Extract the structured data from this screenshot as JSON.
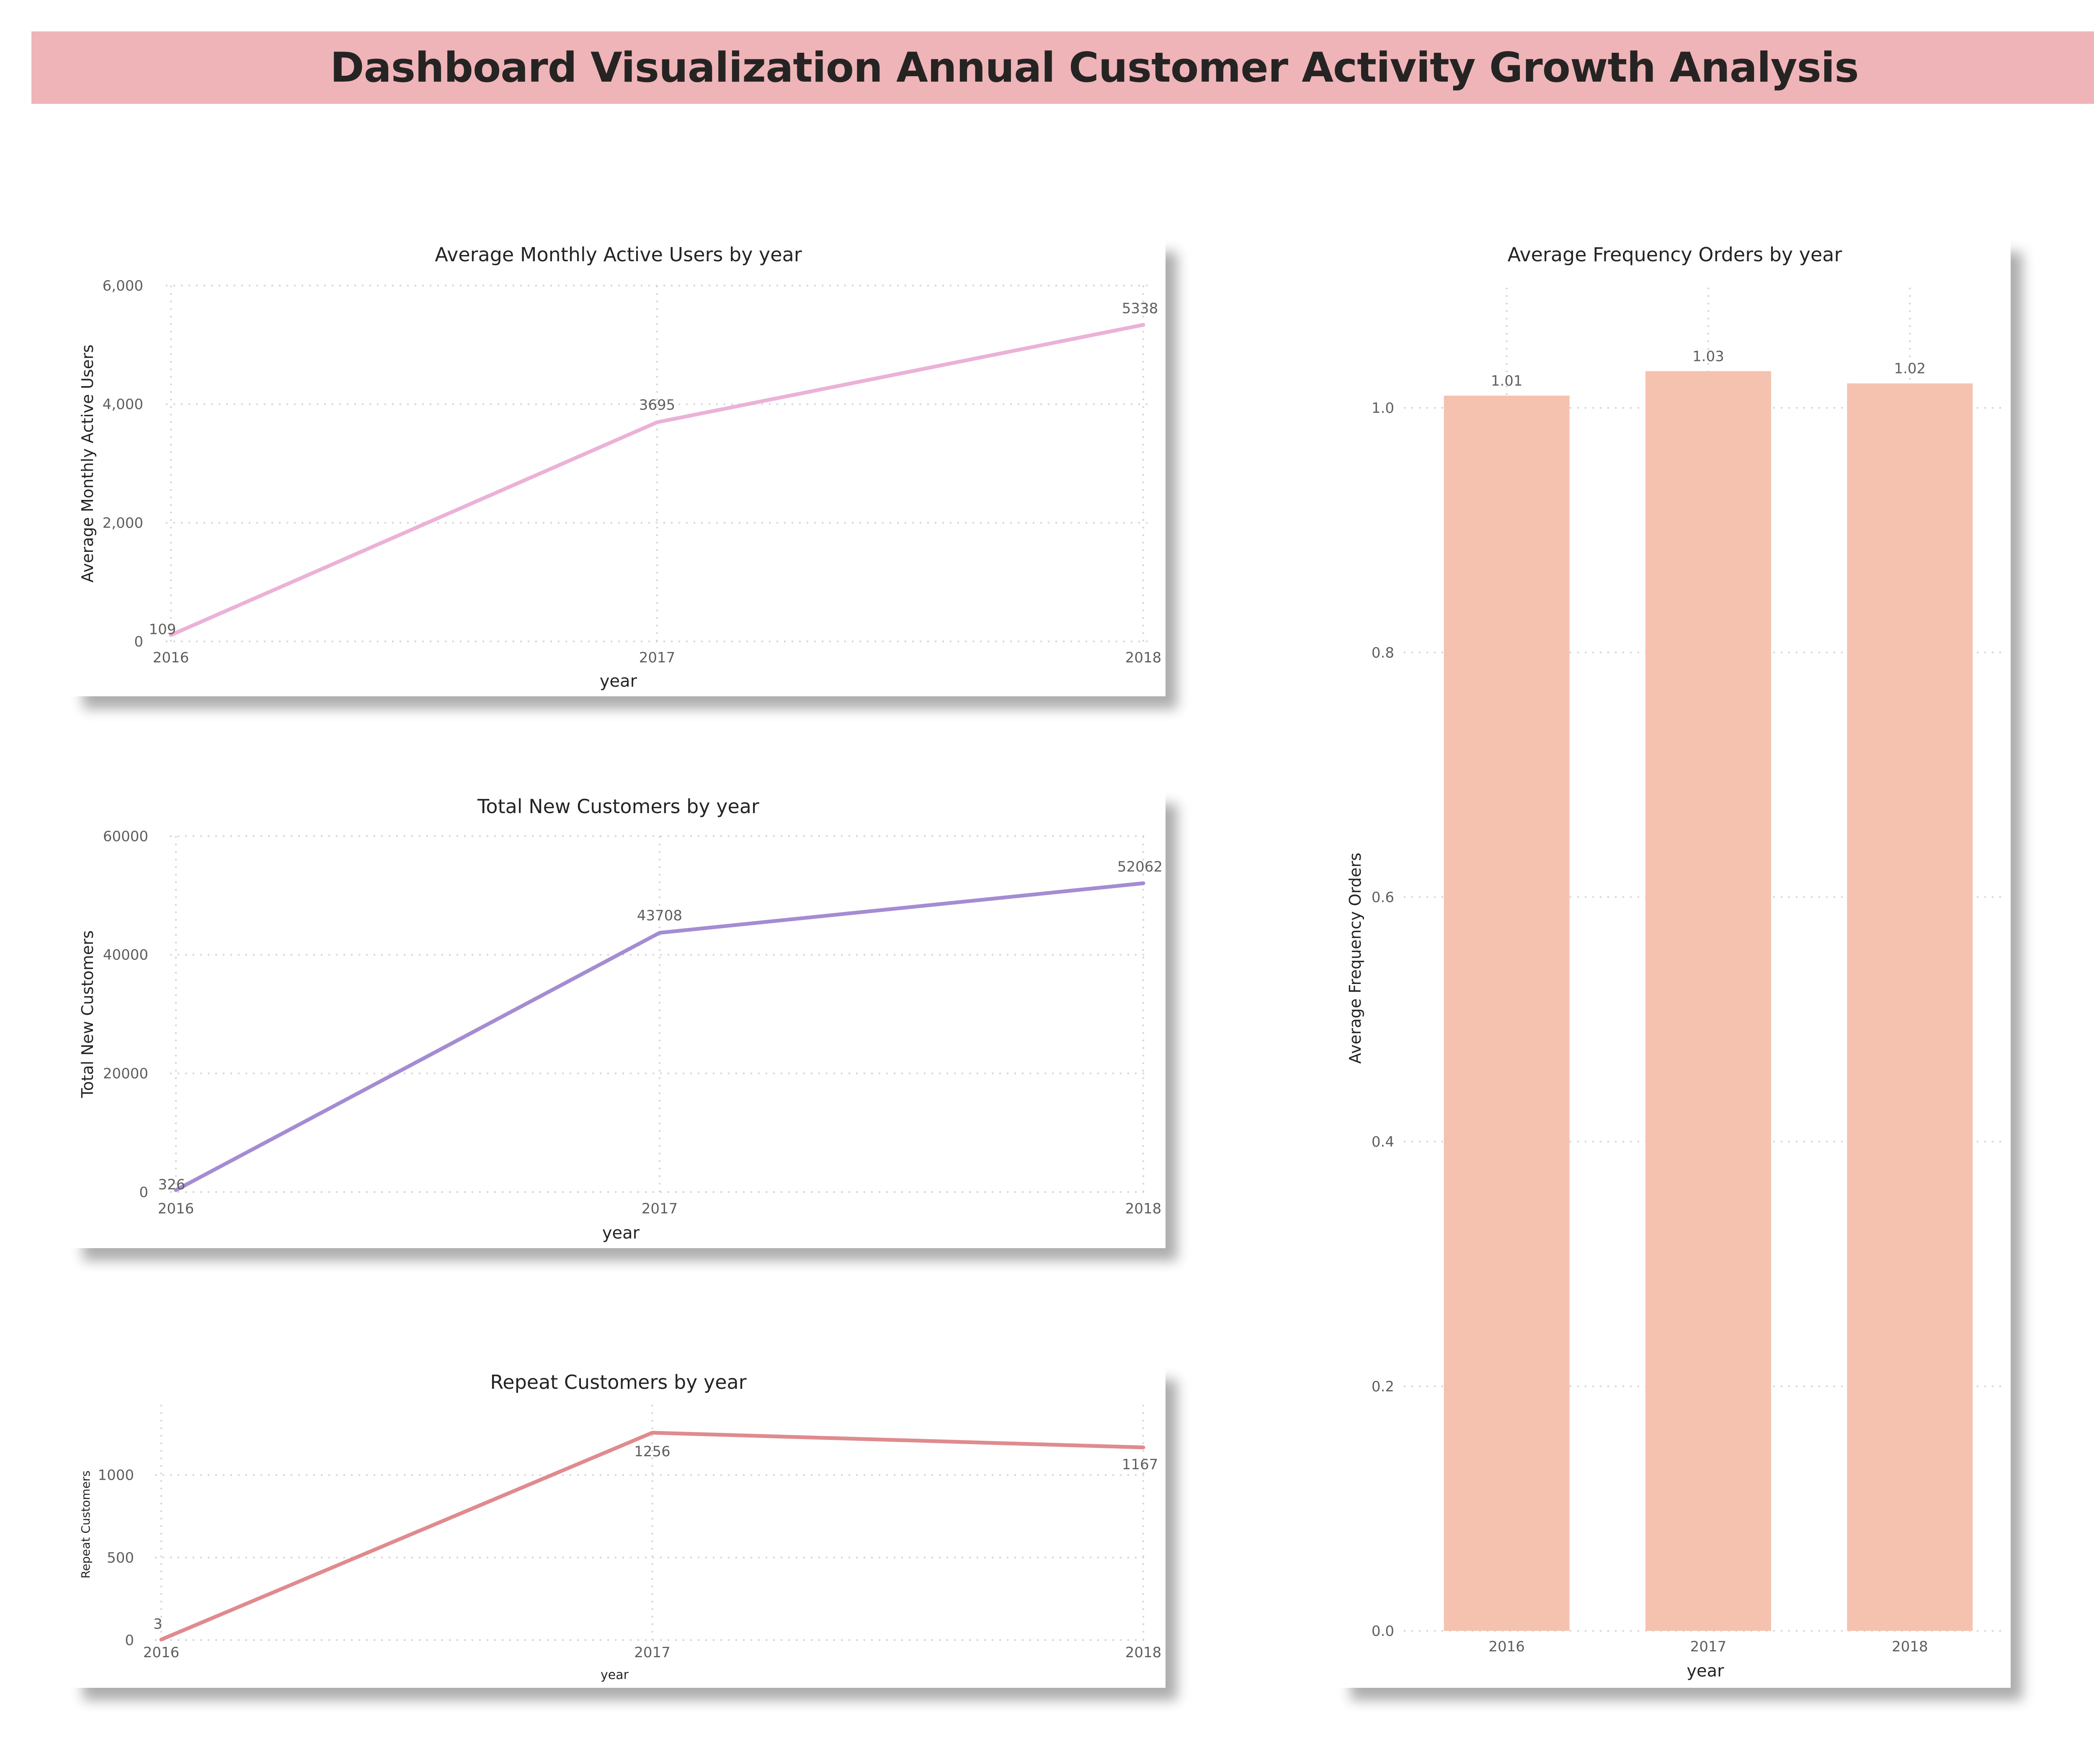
{
  "dashboard": {
    "title": "Dashboard Visualization Annual Customer Activity Growth Analysis"
  },
  "colors": {
    "banner": "#efb4b8",
    "mau_line": "#ecb1d7",
    "new_customers_line": "#a48cd3",
    "repeat_line": "#df8b8e",
    "frequency_bar": "#f5c2af"
  },
  "chart_data": [
    {
      "id": "mau",
      "type": "line",
      "title": "Average Monthly Active Users by year",
      "xlabel": "year",
      "ylabel": "Average Monthly Active Users",
      "x": [
        "2016",
        "2017",
        "2018"
      ],
      "series": [
        {
          "values": [
            109,
            3695,
            5338
          ]
        }
      ],
      "data_labels": [
        "109",
        "3695",
        "5338"
      ],
      "ylim": [
        0,
        6000
      ],
      "yticks": [
        0,
        2000,
        4000,
        6000
      ],
      "ytick_labels": [
        "0",
        "2,000",
        "4,000",
        "6,000"
      ],
      "grid": true,
      "line_color": "#ecb1d7"
    },
    {
      "id": "new_customers",
      "type": "line",
      "title": "Total New Customers by year",
      "xlabel": "year",
      "ylabel": "Total New Customers",
      "x": [
        "2016",
        "2017",
        "2018"
      ],
      "series": [
        {
          "values": [
            326,
            43708,
            52062
          ]
        }
      ],
      "data_labels": [
        "326",
        "43708",
        "52062"
      ],
      "ylim": [
        0,
        60000
      ],
      "yticks": [
        0,
        20000,
        40000,
        60000
      ],
      "ytick_labels": [
        "0",
        "20000",
        "40000",
        "60000"
      ],
      "grid": true,
      "line_color": "#a48cd3"
    },
    {
      "id": "repeat",
      "type": "line",
      "title": "Repeat Customers by year",
      "xlabel": "year",
      "ylabel": "Repeat Customers",
      "x": [
        "2016",
        "2017",
        "2018"
      ],
      "series": [
        {
          "values": [
            3,
            1256,
            1167
          ]
        }
      ],
      "data_labels": [
        "3",
        "1256",
        "1167"
      ],
      "ylim": [
        0,
        1400
      ],
      "yticks": [
        0,
        500,
        1000
      ],
      "ytick_labels": [
        "0",
        "500",
        "1000"
      ],
      "grid": true,
      "line_color": "#df8b8e"
    },
    {
      "id": "frequency",
      "type": "bar",
      "title": "Average Frequency Orders by year",
      "xlabel": "year",
      "ylabel": "Average Frequency Orders",
      "categories": [
        "2016",
        "2017",
        "2018"
      ],
      "values": [
        1.01,
        1.03,
        1.02
      ],
      "data_labels": [
        "1.01",
        "1.03",
        "1.02"
      ],
      "ylim": [
        0,
        1.1
      ],
      "yticks": [
        0,
        0.2,
        0.4,
        0.6,
        0.8,
        1.0
      ],
      "ytick_labels": [
        "0.0",
        "0.2",
        "0.4",
        "0.6",
        "0.8",
        "1.0"
      ],
      "grid": true,
      "bar_color": "#f5c2af"
    }
  ]
}
